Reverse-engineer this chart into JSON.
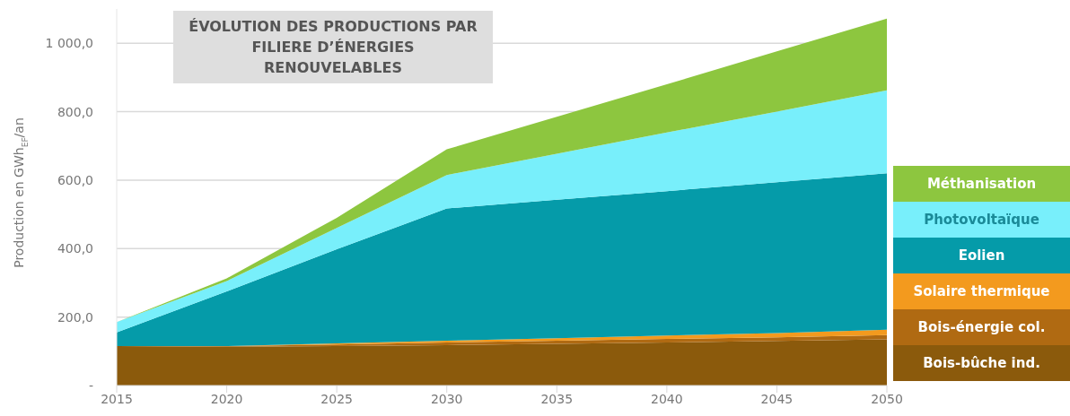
{
  "chart_data": {
    "type": "area",
    "stacked": true,
    "title": "ÉVOLUTION DES PRODUCTIONS PAR FILIERE D’ÉNERGIES RENOUVELABLES",
    "ylabel": "Production en GWh$_{EF}$/an",
    "x": [
      2015,
      2020,
      2025,
      2030,
      2035,
      2040,
      2045,
      2050
    ],
    "series": [
      {
        "name": "Bois-bûche ind.",
        "color": "#8b5a0c",
        "values": [
          115,
          113,
          115,
          118,
          122,
          126,
          130,
          135
        ]
      },
      {
        "name": "Bois-énergie col.",
        "color": "#b06a12",
        "values": [
          0,
          2,
          5,
          8,
          9,
          10,
          11,
          12
        ]
      },
      {
        "name": "Solaire thermique",
        "color": "#f39a1e",
        "values": [
          0,
          0,
          3,
          5,
          7,
          10,
          12,
          16
        ]
      },
      {
        "name": "Eolien",
        "color": "#059ba9",
        "values": [
          40,
          160,
          275,
          386,
          405,
          422,
          441,
          457
        ]
      },
      {
        "name": "Photovoltaïque",
        "color": "#78effb",
        "values": [
          30,
          30,
          62,
          98,
          134,
          171,
          206,
          242
        ]
      },
      {
        "name": "Méthanisation",
        "color": "#8dc63f",
        "values": [
          0,
          8,
          30,
          75,
          108,
          141,
          176,
          210
        ]
      }
    ],
    "xlim": [
      2015,
      2050
    ],
    "xticks": [
      2015,
      2020,
      2025,
      2030,
      2035,
      2040,
      2045,
      2050
    ],
    "ylim": [
      0,
      1100
    ],
    "yticks": [
      {
        "value": 0,
        "label": "-"
      },
      {
        "value": 200,
        "label": "200,0"
      },
      {
        "value": 400,
        "label": "400,0"
      },
      {
        "value": 600,
        "label": "600,0"
      },
      {
        "value": 800,
        "label": "800,0"
      },
      {
        "value": 1000,
        "label": "1 000,0"
      }
    ],
    "grid": "y",
    "legend": "right"
  }
}
